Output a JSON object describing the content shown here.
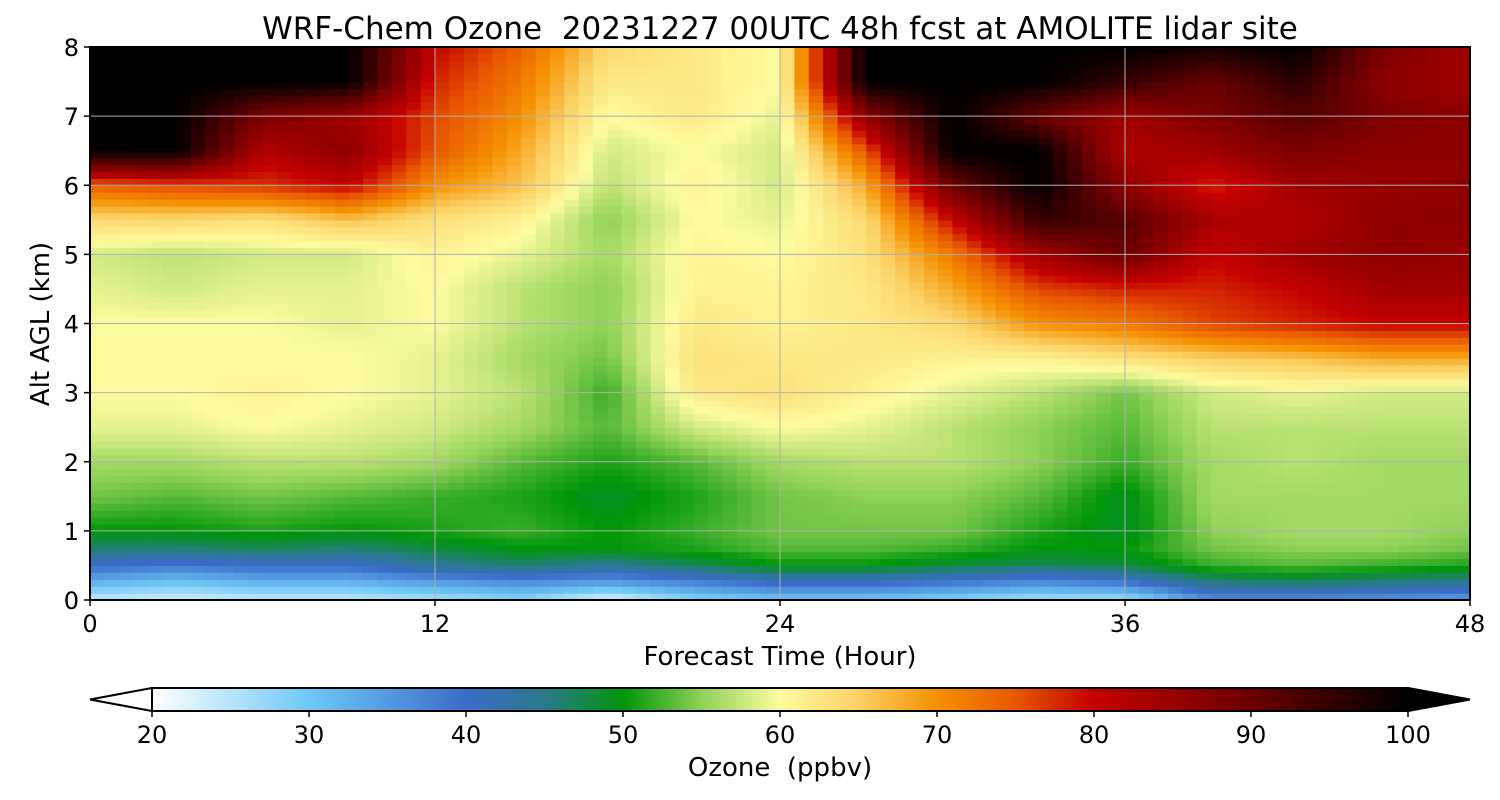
{
  "chart_data": {
    "type": "heatmap",
    "title": "WRF-Chem Ozone  20231227 00UTC 48h fcst at AMOLITE lidar site",
    "xlabel": "Forecast Time (Hour)",
    "ylabel": "Alt AGL (km)",
    "xlim": [
      0,
      48
    ],
    "ylim": [
      0,
      8
    ],
    "xticks": [
      "0",
      "12",
      "24",
      "36",
      "48"
    ],
    "yticks": [
      "0",
      "1",
      "2",
      "3",
      "4",
      "5",
      "6",
      "7",
      "8"
    ],
    "grid": true,
    "x": [
      0,
      3,
      6,
      9,
      12,
      15,
      18,
      21,
      24,
      27,
      30,
      33,
      36,
      39,
      42,
      45,
      48
    ],
    "y": [
      0,
      0.25,
      0.5,
      0.75,
      1,
      1.5,
      2,
      2.5,
      3,
      3.5,
      4,
      4.5,
      5,
      5.5,
      6,
      6.5,
      7,
      7.5,
      8
    ],
    "z": [
      [
        24,
        23,
        24,
        24,
        26,
        28,
        22,
        28,
        30,
        30,
        28,
        26,
        26,
        36,
        36,
        35,
        34
      ],
      [
        32,
        30,
        32,
        32,
        34,
        36,
        34,
        37,
        40,
        40,
        38,
        36,
        38,
        45,
        46,
        45,
        44
      ],
      [
        40,
        38,
        40,
        40,
        44,
        46,
        44,
        47,
        50,
        50,
        48,
        47,
        48,
        52,
        53,
        52,
        51
      ],
      [
        46,
        46,
        47,
        46,
        48,
        50,
        50,
        51,
        53,
        53,
        52,
        50,
        50,
        54,
        55,
        55,
        54
      ],
      [
        50,
        50,
        51,
        50,
        51,
        52,
        50,
        52,
        54,
        54,
        54,
        51,
        49,
        55,
        56,
        56,
        55
      ],
      [
        54,
        53,
        54,
        53,
        52,
        51,
        49,
        51,
        54,
        55,
        55,
        53,
        49,
        56,
        56,
        56,
        56
      ],
      [
        56,
        56,
        57,
        57,
        56,
        53,
        51,
        53,
        56,
        57,
        57,
        55,
        52,
        56,
        57,
        56,
        56
      ],
      [
        59,
        59,
        60,
        59,
        58,
        56,
        53,
        58,
        60,
        59,
        57,
        55,
        53,
        57,
        57,
        57,
        57
      ],
      [
        60,
        60,
        61,
        60,
        59,
        57,
        52,
        62,
        63,
        61,
        59,
        57,
        54,
        58,
        59,
        58,
        58
      ],
      [
        60,
        60,
        60,
        60,
        59,
        56,
        54,
        63,
        62,
        62,
        61,
        61,
        63,
        65,
        66,
        68,
        68
      ],
      [
        60,
        60,
        60,
        59,
        60,
        57,
        55,
        62,
        61,
        62,
        64,
        70,
        72,
        76,
        78,
        80,
        80
      ],
      [
        59,
        58,
        59,
        59,
        60,
        57,
        55,
        61,
        61,
        62,
        68,
        76,
        78,
        78,
        80,
        84,
        84
      ],
      [
        58,
        57,
        58,
        58,
        61,
        59,
        56,
        61,
        60,
        63,
        72,
        84,
        90,
        80,
        84,
        86,
        85
      ],
      [
        64,
        64,
        63,
        66,
        63,
        61,
        55,
        60,
        59,
        64,
        80,
        95,
        92,
        83,
        82,
        86,
        86
      ],
      [
        74,
        76,
        77,
        80,
        70,
        66,
        57,
        61,
        58,
        68,
        90,
        100,
        86,
        78,
        84,
        85,
        86
      ],
      [
        100,
        100,
        82,
        86,
        75,
        68,
        58,
        60,
        58,
        75,
        100,
        100,
        82,
        84,
        88,
        86,
        86
      ],
      [
        100,
        100,
        88,
        84,
        76,
        70,
        60,
        62,
        59,
        86,
        100,
        90,
        84,
        88,
        92,
        88,
        86
      ],
      [
        100,
        100,
        100,
        100,
        78,
        72,
        62,
        62,
        60,
        100,
        100,
        100,
        95,
        90,
        96,
        86,
        84
      ],
      [
        100,
        100,
        100,
        100,
        80,
        74,
        64,
        62,
        60,
        100,
        100,
        100,
        100,
        98,
        100,
        88,
        84
      ]
    ]
  },
  "colorbar": {
    "label": "Ozone  (ppbv)",
    "min": 20,
    "max": 100,
    "ticks": [
      "20",
      "30",
      "40",
      "50",
      "60",
      "70",
      "80",
      "90",
      "100"
    ],
    "extend": "both",
    "colors": [
      {
        "v": 20,
        "c": "#ffffff"
      },
      {
        "v": 30,
        "c": "#6ec8f5"
      },
      {
        "v": 40,
        "c": "#3a6cc8"
      },
      {
        "v": 45,
        "c": "#2a7a8c"
      },
      {
        "v": 50,
        "c": "#00950a"
      },
      {
        "v": 55,
        "c": "#8fd058"
      },
      {
        "v": 60,
        "c": "#fdfba0"
      },
      {
        "v": 65,
        "c": "#fbd064"
      },
      {
        "v": 70,
        "c": "#f59000"
      },
      {
        "v": 75,
        "c": "#e85800"
      },
      {
        "v": 80,
        "c": "#c40000"
      },
      {
        "v": 90,
        "c": "#6a0000"
      },
      {
        "v": 100,
        "c": "#000000"
      }
    ]
  }
}
